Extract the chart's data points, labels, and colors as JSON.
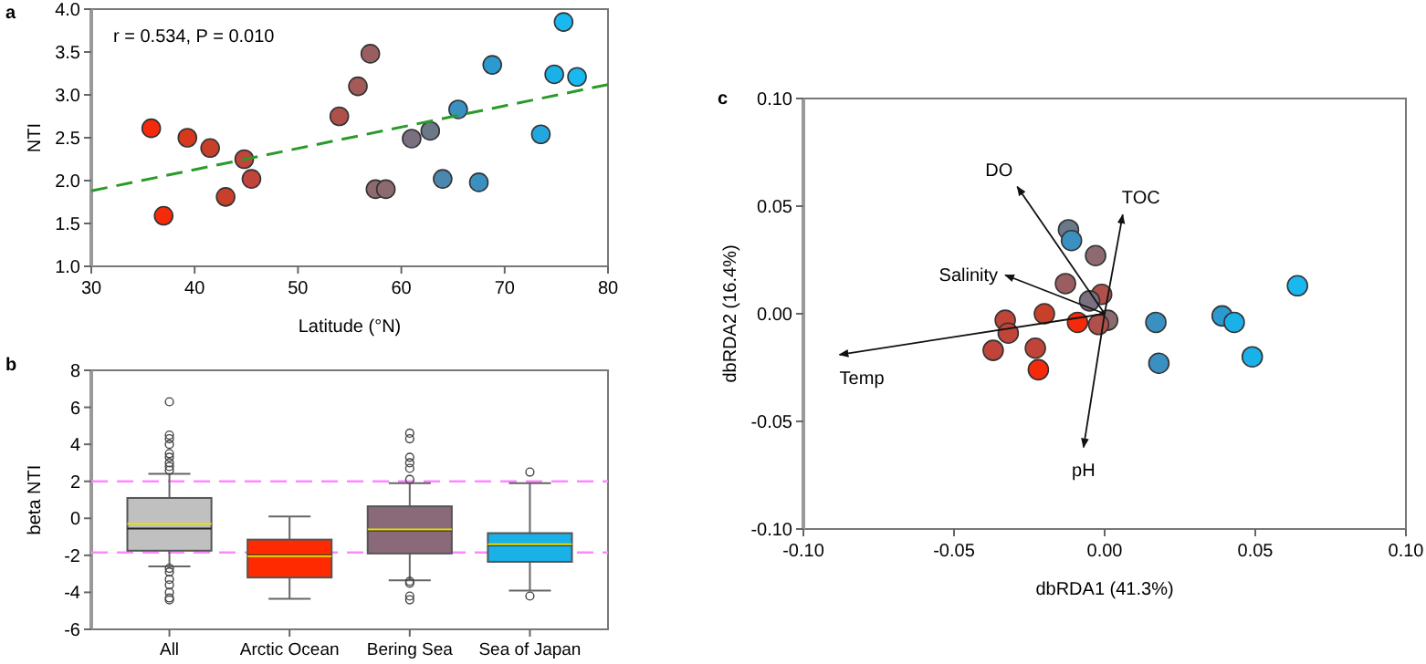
{
  "chart_data": [
    {
      "type": "scatter",
      "xlabel": "Latitude (°N)",
      "ylabel": "NTI",
      "xlim": [
        30,
        80
      ],
      "xticks": [
        30,
        40,
        50,
        60,
        70,
        80
      ],
      "ylim": [
        1,
        4
      ],
      "yticks": [
        {
          "value": 1,
          "label": "1.0"
        },
        {
          "value": 1.5,
          "label": "1.5"
        },
        {
          "value": 2,
          "label": "2.0"
        },
        {
          "value": 2.5,
          "label": "2.5"
        },
        {
          "value": 3,
          "label": "3.0"
        },
        {
          "value": 3.5,
          "label": "3.5"
        },
        {
          "value": 4,
          "label": "4.0"
        }
      ],
      "marker": "circle",
      "annotations": [
        "a",
        "r = 0.534, P = 0.010"
      ],
      "series": [
        {
          "type": "scatter",
          "x": [
            35.8,
            37,
            39.3,
            41.5,
            43,
            44.8,
            45.5,
            54,
            55.8,
            57,
            57.5,
            58.5,
            61,
            62.8,
            64,
            65.5,
            67.5,
            68.8,
            73.5,
            74.8,
            75.7,
            77
          ],
          "values": [
            2.61,
            1.59,
            2.5,
            2.38,
            1.81,
            2.25,
            2.02,
            2.75,
            3.1,
            3.48,
            1.9,
            1.9,
            2.49,
            2.58,
            2.02,
            2.83,
            1.98,
            3.35,
            2.54,
            3.24,
            3.85,
            3.21
          ],
          "colors": [
            "#f52a0a",
            "#f52a0a",
            "#d8381c",
            "#c8402a",
            "#c8402a",
            "#c0443a",
            "#c0443a",
            "#b0504a",
            "#a45a58",
            "#9a5e60",
            "#8c6a70",
            "#8c6a70",
            "#7a7080",
            "#6a7888",
            "#4a88b0",
            "#3a90c0",
            "#3a90c0",
            "#2a9ad0",
            "#22a8e0",
            "#1ab0e8",
            "#1ab8f0",
            "#1ab8f0"
          ]
        },
        {
          "type": "line",
          "x": [
            30,
            80
          ],
          "values": [
            1.88,
            3.12
          ],
          "color": "#2a9a2a",
          "line_style": "dashed",
          "marker": "none"
        }
      ]
    },
    {
      "type": "box",
      "ylabel": "beta NTI",
      "categories": [
        "All",
        "Arctic Ocean",
        "Bering Sea",
        "Sea of Japan"
      ],
      "ylim": [
        -6,
        8
      ],
      "yticks": [
        -6,
        -4,
        -2,
        0,
        2,
        4,
        6,
        8
      ],
      "colors": [
        "#c0c0c0",
        "#ff2a00",
        "#8a6a78",
        "#1ab0e8"
      ],
      "annotations": [
        "b"
      ],
      "boxes": [
        {
          "low": -2.6,
          "q1": -1.75,
          "median": -0.55,
          "q3": 1.1,
          "high": 2.4,
          "mean": -0.3,
          "outliers": [
            6.3,
            4.5,
            4.3,
            4.0,
            3.5,
            3.3,
            3.0,
            2.8,
            2.6,
            -2.7,
            -2.9,
            -3.3,
            -3.6,
            -4.0,
            -4.3,
            -4.4
          ]
        },
        {
          "low": -4.35,
          "q1": -3.2,
          "median": -2.0,
          "q3": -1.15,
          "high": 0.1,
          "mean": -2.05
        },
        {
          "low": -3.35,
          "q1": -1.9,
          "median": -0.65,
          "q3": 0.65,
          "high": 1.9,
          "mean": -0.6,
          "outliers": [
            4.6,
            4.3,
            3.3,
            3.0,
            2.7,
            2.1,
            -3.4,
            -3.5,
            -4.2,
            -4.4
          ]
        },
        {
          "low": -3.9,
          "q1": -2.35,
          "median": -1.45,
          "q3": -0.8,
          "high": 1.9,
          "mean": -1.4,
          "outliers": [
            2.5,
            -4.2
          ]
        }
      ],
      "ref_lines": [
        {
          "axis": "y",
          "value": 2,
          "color": "#ff88ff",
          "line_style": "dashed"
        },
        {
          "axis": "y",
          "value": -1.85,
          "color": "#ff88ff",
          "line_style": "dashed"
        }
      ]
    },
    {
      "type": "scatter",
      "xlabel": "dbRDA1 (41.3%)",
      "ylabel": "dbRDA2 (16.4%)",
      "xlim": [
        -0.1,
        0.1
      ],
      "xticks": [
        {
          "value": -0.1,
          "label": "-0.10"
        },
        {
          "value": -0.05,
          "label": "-0.05"
        },
        {
          "value": 0,
          "label": "0.00"
        },
        {
          "value": 0.05,
          "label": "0.05"
        },
        {
          "value": 0.1,
          "label": "0.10"
        }
      ],
      "ylim": [
        -0.1,
        0.1
      ],
      "yticks": [
        {
          "value": -0.1,
          "label": "-0.10"
        },
        {
          "value": -0.05,
          "label": "-0.05"
        },
        {
          "value": 0,
          "label": "0.00"
        },
        {
          "value": 0.05,
          "label": "0.05"
        },
        {
          "value": 0.1,
          "label": "0.10"
        }
      ],
      "marker": "circle",
      "annotations": [
        "c"
      ],
      "series": [
        {
          "type": "scatter",
          "x": [
            -0.012,
            -0.011,
            -0.003,
            -0.013,
            -0.001,
            -0.005,
            0.001,
            -0.002,
            -0.009,
            -0.02,
            -0.033,
            -0.032,
            -0.037,
            -0.023,
            -0.022,
            0.017,
            0.018,
            0.039,
            0.043,
            0.049,
            0.064
          ],
          "values": [
            0.039,
            0.034,
            0.027,
            0.014,
            0.009,
            0.006,
            -0.003,
            -0.005,
            -0.004,
            0,
            -0.003,
            -0.009,
            -0.017,
            -0.016,
            -0.026,
            -0.004,
            -0.023,
            -0.001,
            -0.004,
            -0.02,
            0.013
          ],
          "colors": [
            "#6a7888",
            "#3a90c0",
            "#8c6a70",
            "#9a5e60",
            "#b0504a",
            "#7a7080",
            "#8c6a70",
            "#b0504a",
            "#f52a0a",
            "#c8402a",
            "#c0443a",
            "#c0443a",
            "#c0443a",
            "#c0443a",
            "#f52a0a",
            "#3a90c0",
            "#3a90c0",
            "#2a9ad0",
            "#1ab0e8",
            "#1ab0e8",
            "#1ab8f0"
          ]
        },
        {
          "type": "line",
          "name": "DO",
          "x": [
            0,
            -0.029
          ],
          "values": [
            0,
            0.059
          ],
          "color": "#111111",
          "marker": "none"
        },
        {
          "type": "line",
          "name": "TOC",
          "x": [
            0,
            0.006
          ],
          "values": [
            0,
            0.046
          ],
          "color": "#111111",
          "marker": "none"
        },
        {
          "type": "line",
          "name": "Salinity",
          "x": [
            0,
            -0.033
          ],
          "values": [
            0,
            0.018
          ],
          "color": "#111111",
          "marker": "none"
        },
        {
          "type": "line",
          "name": "Temp",
          "x": [
            0,
            -0.088
          ],
          "values": [
            0,
            -0.019
          ],
          "color": "#111111",
          "marker": "none"
        },
        {
          "type": "line",
          "name": "pH",
          "x": [
            0,
            -0.007
          ],
          "values": [
            0,
            -0.062
          ],
          "color": "#111111",
          "marker": "none"
        }
      ]
    }
  ]
}
